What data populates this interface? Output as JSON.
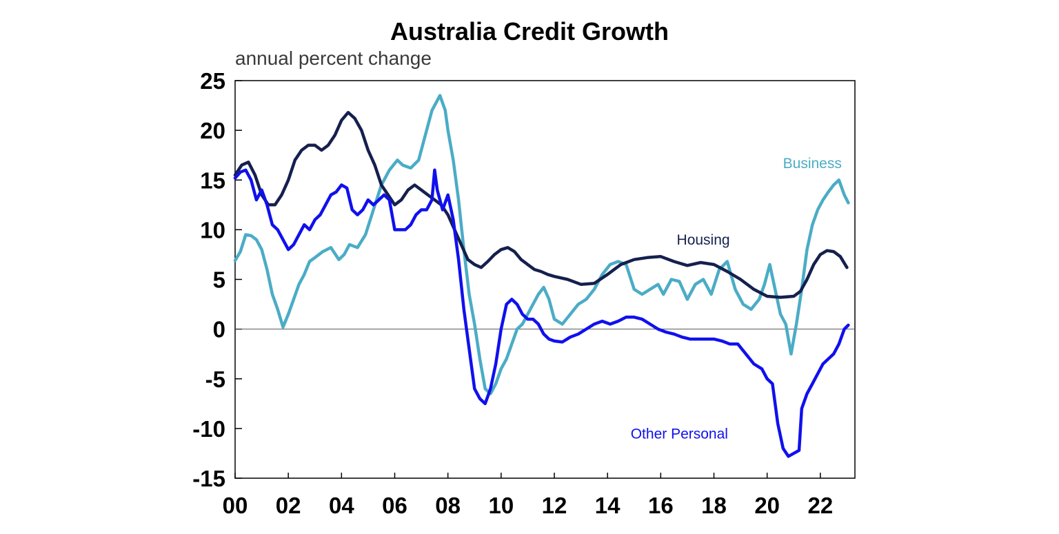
{
  "chart_data": {
    "type": "line",
    "title": "Australia Credit Growth",
    "subtitle": "annual percent change",
    "xlabel": "",
    "ylabel": "",
    "xlim": [
      2000,
      2023.3
    ],
    "ylim": [
      -15,
      25
    ],
    "y_ticks": [
      25,
      20,
      15,
      10,
      5,
      0,
      -5,
      -10,
      -15
    ],
    "x_ticks": [
      {
        "value": 2000,
        "label": "00"
      },
      {
        "value": 2002,
        "label": "02"
      },
      {
        "value": 2004,
        "label": "04"
      },
      {
        "value": 2006,
        "label": "06"
      },
      {
        "value": 2008,
        "label": "08"
      },
      {
        "value": 2010,
        "label": "10"
      },
      {
        "value": 2012,
        "label": "12"
      },
      {
        "value": 2014,
        "label": "14"
      },
      {
        "value": 2016,
        "label": "16"
      },
      {
        "value": 2018,
        "label": "18"
      },
      {
        "value": 2020,
        "label": "20"
      },
      {
        "value": 2022,
        "label": "22"
      }
    ],
    "zero_line": true,
    "grid": false,
    "legend": "inline labels",
    "series": [
      {
        "name": "Business",
        "color": "#4bacc6",
        "label_pos": [
          2021.7,
          16.2
        ],
        "x": [
          2000.0,
          2000.2,
          2000.4,
          2000.6,
          2000.8,
          2001.0,
          2001.2,
          2001.4,
          2001.6,
          2001.8,
          2002.0,
          2002.2,
          2002.4,
          2002.6,
          2002.8,
          2003.0,
          2003.3,
          2003.6,
          2003.9,
          2004.1,
          2004.3,
          2004.6,
          2004.9,
          2005.2,
          2005.5,
          2005.8,
          2006.1,
          2006.3,
          2006.6,
          2006.9,
          2007.1,
          2007.4,
          2007.7,
          2007.9,
          2008.0,
          2008.2,
          2008.4,
          2008.6,
          2008.8,
          2009.0,
          2009.2,
          2009.4,
          2009.6,
          2009.8,
          2010.0,
          2010.2,
          2010.4,
          2010.6,
          2010.8,
          2011.0,
          2011.2,
          2011.4,
          2011.6,
          2011.8,
          2012.0,
          2012.3,
          2012.6,
          2012.9,
          2013.2,
          2013.5,
          2013.8,
          2014.1,
          2014.4,
          2014.7,
          2015.0,
          2015.3,
          2015.6,
          2015.9,
          2016.1,
          2016.4,
          2016.7,
          2017.0,
          2017.3,
          2017.6,
          2017.9,
          2018.2,
          2018.5,
          2018.8,
          2019.1,
          2019.4,
          2019.7,
          2019.9,
          2020.1,
          2020.3,
          2020.5,
          2020.7,
          2020.9,
          2021.1,
          2021.3,
          2021.5,
          2021.7,
          2021.9,
          2022.1,
          2022.3,
          2022.5,
          2022.7,
          2022.9,
          2023.05
        ],
        "y": [
          6.9,
          7.8,
          9.5,
          9.4,
          9.0,
          8.0,
          6.0,
          3.5,
          2.0,
          0.2,
          1.5,
          3.0,
          4.5,
          5.5,
          6.8,
          7.2,
          7.8,
          8.2,
          7.0,
          7.5,
          8.5,
          8.2,
          9.5,
          12.0,
          14.5,
          16.0,
          17.0,
          16.5,
          16.2,
          17.0,
          19.0,
          22.0,
          23.5,
          22.0,
          20.0,
          17.0,
          13.0,
          8.0,
          3.5,
          0.5,
          -3.0,
          -6.0,
          -6.5,
          -5.5,
          -4.0,
          -3.0,
          -1.5,
          0.0,
          0.5,
          1.5,
          2.5,
          3.5,
          4.2,
          3.0,
          1.0,
          0.5,
          1.5,
          2.5,
          3.0,
          4.0,
          5.5,
          6.5,
          6.8,
          6.5,
          4.0,
          3.5,
          4.0,
          4.5,
          3.5,
          5.0,
          4.8,
          3.0,
          4.5,
          5.0,
          3.5,
          6.0,
          6.8,
          4.0,
          2.5,
          2.0,
          3.0,
          4.5,
          6.5,
          4.0,
          1.5,
          0.5,
          -2.5,
          0.5,
          4.0,
          8.0,
          10.5,
          12.0,
          13.0,
          13.8,
          14.5,
          15.0,
          13.5,
          12.7
        ]
      },
      {
        "name": "Housing",
        "color": "#15204e",
        "label_pos": [
          2017.6,
          8.5
        ],
        "x": [
          2000.0,
          2000.25,
          2000.5,
          2000.75,
          2001.0,
          2001.25,
          2001.5,
          2001.75,
          2002.0,
          2002.25,
          2002.5,
          2002.75,
          2003.0,
          2003.25,
          2003.5,
          2003.75,
          2004.0,
          2004.25,
          2004.5,
          2004.75,
          2005.0,
          2005.25,
          2005.5,
          2005.75,
          2006.0,
          2006.25,
          2006.5,
          2006.75,
          2007.0,
          2007.25,
          2007.5,
          2007.75,
          2008.0,
          2008.25,
          2008.5,
          2008.75,
          2009.0,
          2009.25,
          2009.5,
          2009.75,
          2010.0,
          2010.25,
          2010.5,
          2010.75,
          2011.0,
          2011.25,
          2011.5,
          2011.75,
          2012.0,
          2012.5,
          2013.0,
          2013.5,
          2014.0,
          2014.5,
          2015.0,
          2015.5,
          2016.0,
          2016.5,
          2017.0,
          2017.5,
          2018.0,
          2018.5,
          2019.0,
          2019.5,
          2020.0,
          2020.5,
          2021.0,
          2021.25,
          2021.5,
          2021.75,
          2022.0,
          2022.25,
          2022.5,
          2022.75,
          2023.0
        ],
        "y": [
          15.5,
          16.5,
          16.8,
          15.5,
          13.5,
          12.5,
          12.5,
          13.5,
          15.0,
          17.0,
          18.0,
          18.5,
          18.5,
          18.0,
          18.5,
          19.5,
          21.0,
          21.8,
          21.2,
          20.0,
          18.0,
          16.5,
          14.5,
          13.5,
          12.5,
          13.0,
          14.0,
          14.5,
          14.0,
          13.5,
          13.0,
          12.5,
          11.5,
          10.0,
          8.5,
          7.0,
          6.5,
          6.2,
          6.8,
          7.5,
          8.0,
          8.2,
          7.8,
          7.0,
          6.5,
          6.0,
          5.8,
          5.5,
          5.3,
          5.0,
          4.5,
          4.6,
          5.5,
          6.5,
          7.0,
          7.2,
          7.3,
          6.8,
          6.4,
          6.7,
          6.5,
          5.8,
          5.0,
          4.0,
          3.3,
          3.2,
          3.3,
          3.8,
          5.0,
          6.5,
          7.5,
          7.9,
          7.8,
          7.3,
          6.2
        ]
      },
      {
        "name": "Other Personal",
        "color": "#1010ee",
        "label_pos": [
          2016.7,
          -11.0
        ],
        "x": [
          2000.0,
          2000.2,
          2000.4,
          2000.6,
          2000.8,
          2001.0,
          2001.2,
          2001.4,
          2001.6,
          2001.8,
          2002.0,
          2002.2,
          2002.4,
          2002.6,
          2002.8,
          2003.0,
          2003.2,
          2003.4,
          2003.6,
          2003.8,
          2004.0,
          2004.2,
          2004.4,
          2004.6,
          2004.8,
          2005.0,
          2005.2,
          2005.4,
          2005.6,
          2005.8,
          2006.0,
          2006.2,
          2006.4,
          2006.6,
          2006.8,
          2007.0,
          2007.2,
          2007.4,
          2007.5,
          2007.6,
          2007.8,
          2008.0,
          2008.2,
          2008.4,
          2008.6,
          2008.8,
          2009.0,
          2009.2,
          2009.4,
          2009.6,
          2009.8,
          2010.0,
          2010.2,
          2010.4,
          2010.6,
          2010.8,
          2011.0,
          2011.2,
          2011.4,
          2011.6,
          2011.8,
          2012.0,
          2012.3,
          2012.6,
          2012.9,
          2013.2,
          2013.5,
          2013.8,
          2014.1,
          2014.4,
          2014.7,
          2015.0,
          2015.3,
          2015.6,
          2015.9,
          2016.2,
          2016.5,
          2016.8,
          2017.1,
          2017.4,
          2017.7,
          2018.0,
          2018.3,
          2018.6,
          2018.9,
          2019.2,
          2019.5,
          2019.8,
          2020.0,
          2020.2,
          2020.4,
          2020.6,
          2020.8,
          2021.0,
          2021.2,
          2021.3,
          2021.5,
          2021.7,
          2021.9,
          2022.1,
          2022.3,
          2022.5,
          2022.7,
          2022.9,
          2023.05
        ],
        "y": [
          15.2,
          15.8,
          16.0,
          15.0,
          13.0,
          14.0,
          12.5,
          10.5,
          10.0,
          9.0,
          8.0,
          8.5,
          9.5,
          10.5,
          10.0,
          11.0,
          11.5,
          12.5,
          13.5,
          13.8,
          14.5,
          14.2,
          12.0,
          11.5,
          12.0,
          13.0,
          12.5,
          13.0,
          13.5,
          13.0,
          10.0,
          10.0,
          10.0,
          10.5,
          11.5,
          12.0,
          12.0,
          13.0,
          16.0,
          14.0,
          12.0,
          13.5,
          11.0,
          7.0,
          2.0,
          -2.0,
          -6.0,
          -7.0,
          -7.5,
          -6.0,
          -3.5,
          0.0,
          2.5,
          3.0,
          2.5,
          1.5,
          1.0,
          1.0,
          0.5,
          -0.5,
          -1.0,
          -1.2,
          -1.3,
          -0.8,
          -0.5,
          0.0,
          0.5,
          0.8,
          0.5,
          0.8,
          1.2,
          1.2,
          1.0,
          0.5,
          0.0,
          -0.3,
          -0.5,
          -0.8,
          -1.0,
          -1.0,
          -1.0,
          -1.0,
          -1.2,
          -1.5,
          -1.5,
          -2.5,
          -3.5,
          -4.0,
          -5.0,
          -5.5,
          -9.5,
          -12.0,
          -12.8,
          -12.5,
          -12.2,
          -8.0,
          -6.5,
          -5.5,
          -4.5,
          -3.5,
          -3.0,
          -2.5,
          -1.5,
          0.0,
          0.4
        ]
      }
    ]
  }
}
